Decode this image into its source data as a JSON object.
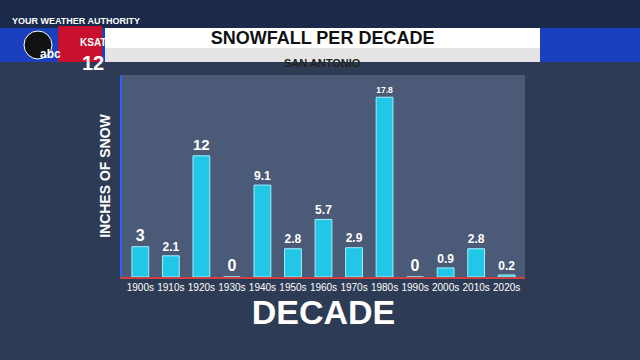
{
  "chart_data": {
    "type": "bar",
    "title": "SNOWFALL PER DECADE",
    "subtitle": "SAN ANTONIO",
    "y_label": "INCHES OF SNOW",
    "x_label": "DECADE",
    "annotations": [
      "YOUR WEATHER AUTHORITY",
      "abc",
      "KSAT",
      "12"
    ],
    "categories": [
      "1900s",
      "1910s",
      "1920s",
      "1930s",
      "1940s",
      "1950s",
      "1960s",
      "1970s",
      "1980s",
      "1990s",
      "2000s",
      "2010s",
      "2020s"
    ],
    "values": [
      3,
      2.1,
      12,
      0,
      9.1,
      2.8,
      5.7,
      2.9,
      17.8,
      0,
      0.9,
      2.8,
      0.2
    ],
    "color": "#22c6e6",
    "ylim": [
      0,
      20
    ],
    "grid": false,
    "data_labels": true,
    "tick_labels": "x"
  }
}
